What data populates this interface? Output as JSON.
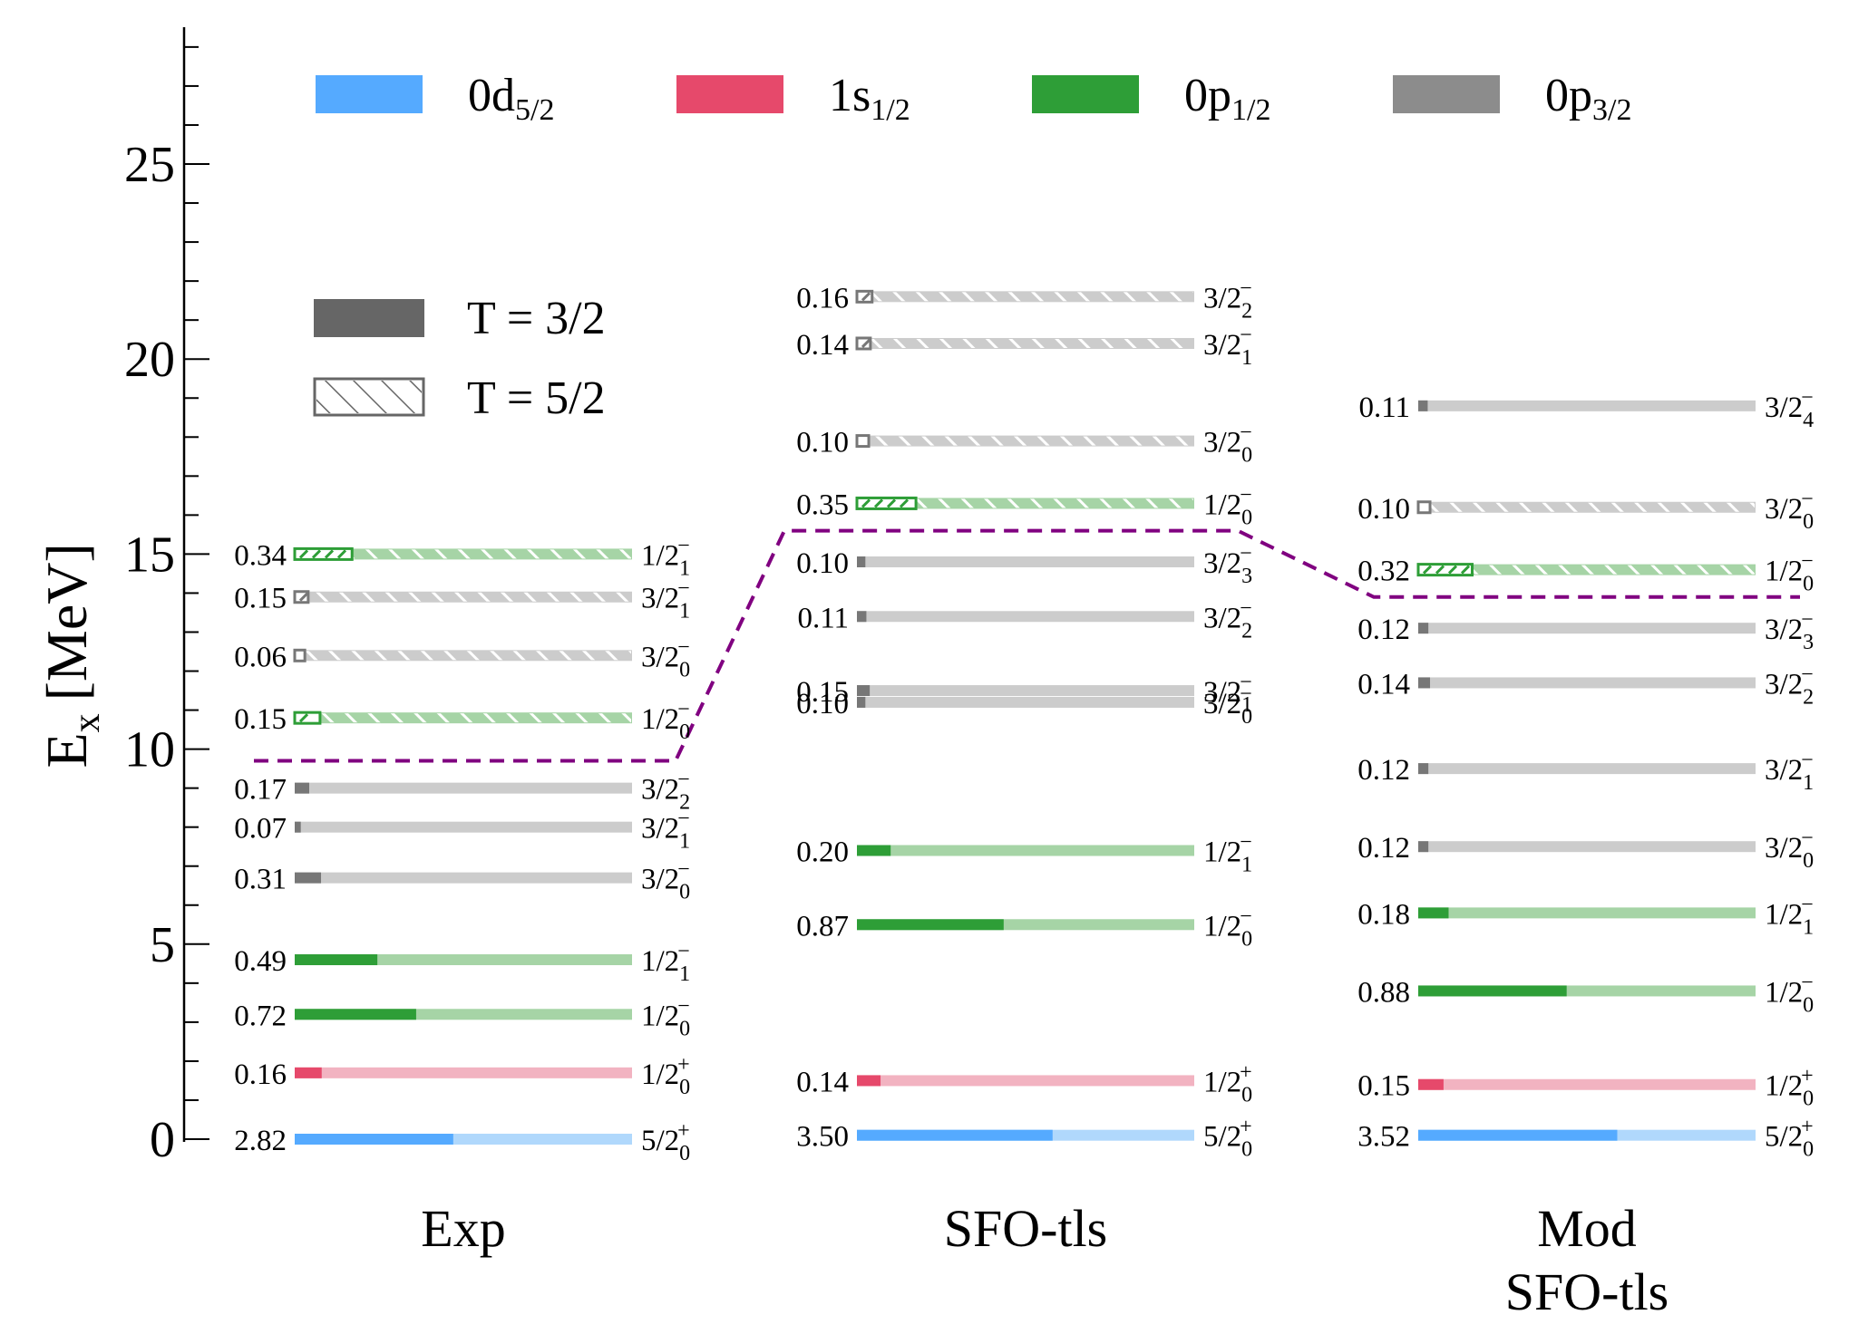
{
  "chart_data": {
    "type": "level-scheme",
    "ylabel": "E",
    "ylabel_sub": "x",
    "ylabel_unit": "[MeV]",
    "ylim": [
      -0.5,
      28.5
    ],
    "yticks_major": [
      0,
      5,
      10,
      15,
      20,
      25
    ],
    "ytick_minor_step": 1,
    "line_width_units": 1.0,
    "legend_orbitals": [
      {
        "name": "0d",
        "sub": "5/2",
        "key": "d52"
      },
      {
        "name": "1s",
        "sub": "1/2",
        "key": "s12"
      },
      {
        "name": "0p",
        "sub": "1/2",
        "key": "p12"
      },
      {
        "name": "0p",
        "sub": "3/2",
        "key": "p32"
      }
    ],
    "legend_isospin": [
      {
        "label": "T = 3/2",
        "T": "3/2"
      },
      {
        "label": "T = 5/2",
        "T": "5/2"
      }
    ],
    "colors": {
      "d52": "#55aaff",
      "s12": "#e6496b",
      "p12": "#2e9e37",
      "p32": "#8c8c8c",
      "threshold": "#800080"
    },
    "columns": [
      {
        "label": [
          "Exp"
        ],
        "threshold_ex": 9.7,
        "levels": [
          {
            "ex": 0.0,
            "sf": "2.82",
            "orb": "d52",
            "T": "3/2",
            "j": "5/2",
            "n": "0",
            "p": "+",
            "frac": 0.47
          },
          {
            "ex": 1.7,
            "sf": "0.16",
            "orb": "s12",
            "T": "3/2",
            "j": "1/2",
            "n": "0",
            "p": "+",
            "frac": 0.08
          },
          {
            "ex": 3.2,
            "sf": "0.72",
            "orb": "p12",
            "T": "3/2",
            "j": "1/2",
            "n": "0",
            "p": "−",
            "frac": 0.36
          },
          {
            "ex": 4.6,
            "sf": "0.49",
            "orb": "p12",
            "T": "3/2",
            "j": "1/2",
            "n": "1",
            "p": "−",
            "frac": 0.245
          },
          {
            "ex": 6.7,
            "sf": "0.31",
            "orb": "p32",
            "T": "3/2",
            "j": "3/2",
            "n": "0",
            "p": "−",
            "frac": 0.078
          },
          {
            "ex": 8.0,
            "sf": "0.07",
            "orb": "p32",
            "T": "3/2",
            "j": "3/2",
            "n": "1",
            "p": "−",
            "frac": 0.018
          },
          {
            "ex": 9.0,
            "sf": "0.17",
            "orb": "p32",
            "T": "3/2",
            "j": "3/2",
            "n": "2",
            "p": "−",
            "frac": 0.043
          },
          {
            "ex": 10.8,
            "sf": "0.15",
            "orb": "p12",
            "T": "5/2",
            "j": "1/2",
            "n": "0",
            "p": "−",
            "frac": 0.075
          },
          {
            "ex": 12.4,
            "sf": "0.06",
            "orb": "p32",
            "T": "5/2",
            "j": "3/2",
            "n": "0",
            "p": "−",
            "frac": 0.03
          },
          {
            "ex": 13.9,
            "sf": "0.15",
            "orb": "p32",
            "T": "5/2",
            "j": "3/2",
            "n": "1",
            "p": "−",
            "frac": 0.04
          },
          {
            "ex": 15.0,
            "sf": "0.34",
            "orb": "p12",
            "T": "5/2",
            "j": "1/2",
            "n": "1",
            "p": "−",
            "frac": 0.17
          }
        ]
      },
      {
        "label": [
          "SFO-tls"
        ],
        "threshold_ex": 15.6,
        "levels": [
          {
            "ex": 0.1,
            "sf": "3.50",
            "orb": "d52",
            "T": "3/2",
            "j": "5/2",
            "n": "0",
            "p": "+",
            "frac": 0.58
          },
          {
            "ex": 1.5,
            "sf": "0.14",
            "orb": "s12",
            "T": "3/2",
            "j": "1/2",
            "n": "0",
            "p": "+",
            "frac": 0.07
          },
          {
            "ex": 5.5,
            "sf": "0.87",
            "orb": "p12",
            "T": "3/2",
            "j": "1/2",
            "n": "0",
            "p": "−",
            "frac": 0.435
          },
          {
            "ex": 7.4,
            "sf": "0.20",
            "orb": "p12",
            "T": "3/2",
            "j": "1/2",
            "n": "1",
            "p": "−",
            "frac": 0.1
          },
          {
            "ex": 11.2,
            "sf": "0.10",
            "orb": "p32",
            "T": "3/2",
            "j": "3/2",
            "n": "0",
            "p": "−",
            "frac": 0.025
          },
          {
            "ex": 11.5,
            "sf": "0.15",
            "orb": "p32",
            "T": "3/2",
            "j": "3/2",
            "n": "1",
            "p": "−",
            "frac": 0.038
          },
          {
            "ex": 13.4,
            "sf": "0.11",
            "orb": "p32",
            "T": "3/2",
            "j": "3/2",
            "n": "2",
            "p": "−",
            "frac": 0.028
          },
          {
            "ex": 14.8,
            "sf": "0.10",
            "orb": "p32",
            "T": "3/2",
            "j": "3/2",
            "n": "3",
            "p": "−",
            "frac": 0.025
          },
          {
            "ex": 16.3,
            "sf": "0.35",
            "orb": "p12",
            "T": "5/2",
            "j": "1/2",
            "n": "0",
            "p": "−",
            "frac": 0.175
          },
          {
            "ex": 17.9,
            "sf": "0.10",
            "orb": "p32",
            "T": "5/2",
            "j": "3/2",
            "n": "0",
            "p": "−",
            "frac": 0.035
          },
          {
            "ex": 20.4,
            "sf": "0.14",
            "orb": "p32",
            "T": "5/2",
            "j": "3/2",
            "n": "1",
            "p": "−",
            "frac": 0.04
          },
          {
            "ex": 21.6,
            "sf": "0.16",
            "orb": "p32",
            "T": "5/2",
            "j": "3/2",
            "n": "2",
            "p": "−",
            "frac": 0.045
          }
        ]
      },
      {
        "label": [
          "Mod",
          "SFO-tls"
        ],
        "threshold_ex": 13.9,
        "levels": [
          {
            "ex": 0.1,
            "sf": "3.52",
            "orb": "d52",
            "T": "3/2",
            "j": "5/2",
            "n": "0",
            "p": "+",
            "frac": 0.59
          },
          {
            "ex": 1.4,
            "sf": "0.15",
            "orb": "s12",
            "T": "3/2",
            "j": "1/2",
            "n": "0",
            "p": "+",
            "frac": 0.075
          },
          {
            "ex": 3.8,
            "sf": "0.88",
            "orb": "p12",
            "T": "3/2",
            "j": "1/2",
            "n": "0",
            "p": "−",
            "frac": 0.44
          },
          {
            "ex": 5.8,
            "sf": "0.18",
            "orb": "p12",
            "T": "3/2",
            "j": "1/2",
            "n": "1",
            "p": "−",
            "frac": 0.09
          },
          {
            "ex": 7.5,
            "sf": "0.12",
            "orb": "p32",
            "T": "3/2",
            "j": "3/2",
            "n": "0",
            "p": "−",
            "frac": 0.03
          },
          {
            "ex": 9.5,
            "sf": "0.12",
            "orb": "p32",
            "T": "3/2",
            "j": "3/2",
            "n": "1",
            "p": "−",
            "frac": 0.03
          },
          {
            "ex": 11.7,
            "sf": "0.14",
            "orb": "p32",
            "T": "3/2",
            "j": "3/2",
            "n": "2",
            "p": "−",
            "frac": 0.035
          },
          {
            "ex": 13.1,
            "sf": "0.12",
            "orb": "p32",
            "T": "3/2",
            "j": "3/2",
            "n": "3",
            "p": "−",
            "frac": 0.03
          },
          {
            "ex": 14.6,
            "sf": "0.32",
            "orb": "p12",
            "T": "5/2",
            "j": "1/2",
            "n": "0",
            "p": "−",
            "frac": 0.16
          },
          {
            "ex": 16.2,
            "sf": "0.10",
            "orb": "p32",
            "T": "5/2",
            "j": "3/2",
            "n": "0",
            "p": "−",
            "frac": 0.035
          },
          {
            "ex": 18.8,
            "sf": "0.11",
            "orb": "p32",
            "T": "3/2",
            "j": "3/2",
            "n": "4",
            "p": "−",
            "frac": 0.028
          }
        ]
      }
    ]
  }
}
